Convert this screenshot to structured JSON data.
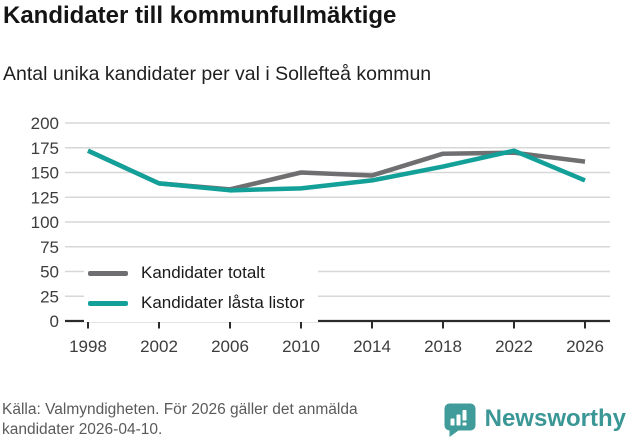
{
  "header": {
    "title": "Kandidater till kommunfullmäktige",
    "subtitle": "Antal unika kandidater per val i Sollefteå kommun"
  },
  "chart_data": {
    "type": "line",
    "x": [
      1998,
      2002,
      2006,
      2010,
      2014,
      2018,
      2022,
      2026
    ],
    "series": [
      {
        "name": "Kandidater totalt",
        "color": "#6f6f71",
        "values": [
          172,
          139,
          133,
          150,
          147,
          169,
          170,
          161
        ]
      },
      {
        "name": "Kandidater låsta listor",
        "color": "#12a099",
        "values": [
          172,
          139,
          132,
          134,
          142,
          156,
          172,
          142
        ]
      }
    ],
    "ylim": [
      0,
      200
    ],
    "yticks": [
      0,
      25,
      50,
      75,
      100,
      125,
      150,
      175,
      200
    ],
    "grid": "horizontal",
    "legend_position": "inside-bottom-left",
    "axis_color": "#2b2b2b",
    "gridline_color": "#d7d7d7"
  },
  "footer": {
    "source_line1": "Källa: Valmyndigheten. För 2026 gäller det anmälda",
    "source_line2": "kandidater 2026-04-10.",
    "brand": "Newsworthy"
  }
}
